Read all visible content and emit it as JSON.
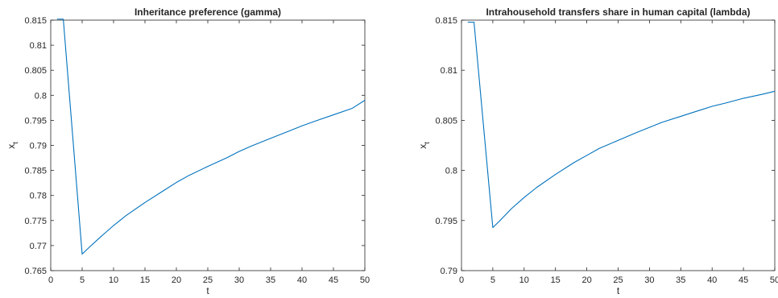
{
  "chart_data": [
    {
      "type": "line",
      "title": "Inheritance preference (gamma)",
      "xlabel": "t",
      "ylabel": "x",
      "ylabel_subscript": "t",
      "xlim": [
        0,
        50
      ],
      "ylim": [
        0.765,
        0.815
      ],
      "xticks": [
        0,
        5,
        10,
        15,
        20,
        25,
        30,
        35,
        40,
        45,
        50
      ],
      "yticks": [
        0.765,
        0.77,
        0.775,
        0.78,
        0.785,
        0.79,
        0.795,
        0.8,
        0.805,
        0.81,
        0.815
      ],
      "ytick_labels": [
        "0.765",
        "0.77",
        "0.775",
        "0.78",
        "0.785",
        "0.79",
        "0.795",
        "0.8",
        "0.805",
        "0.81",
        "0.815"
      ],
      "grid": false,
      "line_color": "#0072bd",
      "series": [
        {
          "x": [
            1,
            2,
            5,
            6,
            8,
            10,
            12,
            15,
            18,
            20,
            22,
            25,
            28,
            30,
            32,
            35,
            38,
            40,
            42,
            45,
            48,
            50
          ],
          "values": [
            0.8152,
            0.8152,
            0.7683,
            0.7695,
            0.7718,
            0.774,
            0.776,
            0.7786,
            0.781,
            0.7826,
            0.784,
            0.7858,
            0.7875,
            0.7888,
            0.7899,
            0.7914,
            0.7929,
            0.7939,
            0.7948,
            0.7961,
            0.7974,
            0.799
          ]
        }
      ]
    },
    {
      "type": "line",
      "title": "Intrahousehold transfers share in human capital (lambda)",
      "xlabel": "t",
      "ylabel": "x",
      "ylabel_subscript": "t",
      "xlim": [
        0,
        50
      ],
      "ylim": [
        0.79,
        0.815
      ],
      "xticks": [
        0,
        5,
        10,
        15,
        20,
        25,
        30,
        35,
        40,
        45,
        50
      ],
      "yticks": [
        0.79,
        0.795,
        0.8,
        0.805,
        0.81,
        0.815
      ],
      "ytick_labels": [
        "0.79",
        "0.795",
        "0.8",
        "0.805",
        "0.81",
        "0.815"
      ],
      "grid": false,
      "line_color": "#0072bd",
      "series": [
        {
          "x": [
            1,
            2,
            5,
            6,
            8,
            10,
            12,
            15,
            18,
            20,
            22,
            25,
            28,
            30,
            32,
            35,
            38,
            40,
            42,
            45,
            48,
            50
          ],
          "values": [
            0.8148,
            0.8148,
            0.7943,
            0.7949,
            0.7962,
            0.7973,
            0.7983,
            0.7996,
            0.8008,
            0.8015,
            0.8022,
            0.803,
            0.8038,
            0.8043,
            0.8048,
            0.8054,
            0.806,
            0.8064,
            0.8067,
            0.8072,
            0.8076,
            0.8079
          ]
        }
      ]
    }
  ]
}
